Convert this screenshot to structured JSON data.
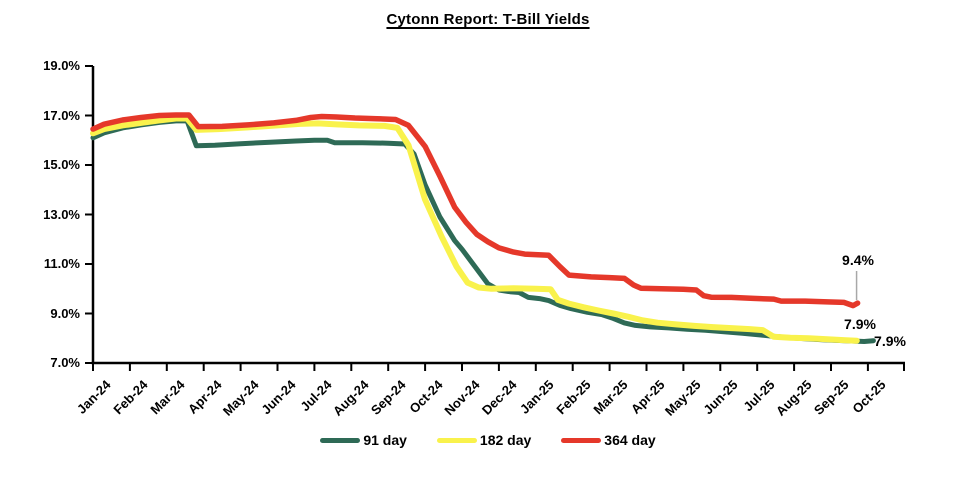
{
  "title": "Cytonn Report: T-Bill Yields",
  "y_axis": {
    "ticks": [
      "19.0%",
      "17.0%",
      "15.0%",
      "13.0%",
      "11.0%",
      "9.0%",
      "7.0%"
    ],
    "min": 7.0,
    "max": 19.0,
    "axis_color": "#000000"
  },
  "legend": {
    "items": [
      {
        "label": "91 day",
        "color": "#2E6A56"
      },
      {
        "label": "182 day",
        "color": "#F9F24C"
      },
      {
        "label": "364 day",
        "color": "#E5382A"
      }
    ]
  },
  "leader_line_color": "#A8A8A8",
  "chart_data": {
    "type": "line",
    "title": "Cytonn Report: T-Bill Yields",
    "xlabel": "",
    "ylabel": "",
    "ylim": [
      7.0,
      19.0
    ],
    "y_tick_step": 2.0,
    "grid": false,
    "legend_position": "bottom",
    "categories": [
      "Jan-24",
      "Feb-24",
      "Mar-24",
      "Apr-24",
      "May-24",
      "Jun-24",
      "Jul-24",
      "Aug-24",
      "Sep-24",
      "Oct-24",
      "Nov-24",
      "Dec-24",
      "Jan-25",
      "Feb-25",
      "Mar-25",
      "Apr-25",
      "May-25",
      "Jun-25",
      "Jul-25",
      "Aug-25",
      "Sep-25",
      "Oct-25"
    ],
    "series": [
      {
        "name": "91 day",
        "color": "#2E6A56",
        "stroke_width": 5,
        "end_value_label": "7.9%",
        "values": [
          16.1,
          16.6,
          16.8,
          15.8,
          15.9,
          16.0,
          16.0,
          15.9,
          15.9,
          14.2,
          11.6,
          10.0,
          9.6,
          9.0,
          8.9,
          8.5,
          8.4,
          8.3,
          8.2,
          8.1,
          7.9,
          7.9
        ],
        "path": [
          [
            0,
            16.1
          ],
          [
            0.3,
            16.3
          ],
          [
            0.8,
            16.5
          ],
          [
            1.3,
            16.62
          ],
          [
            1.8,
            16.72
          ],
          [
            2.25,
            16.78
          ],
          [
            2.55,
            16.78
          ],
          [
            2.8,
            15.78
          ],
          [
            3.3,
            15.8
          ],
          [
            4.0,
            15.86
          ],
          [
            4.8,
            15.92
          ],
          [
            5.5,
            15.97
          ],
          [
            6.0,
            16.0
          ],
          [
            6.35,
            16.0
          ],
          [
            6.55,
            15.9
          ],
          [
            7.3,
            15.9
          ],
          [
            8.0,
            15.88
          ],
          [
            8.45,
            15.85
          ],
          [
            8.7,
            15.45
          ],
          [
            9.0,
            14.2
          ],
          [
            9.4,
            12.9
          ],
          [
            9.8,
            11.95
          ],
          [
            10.0,
            11.6
          ],
          [
            10.35,
            10.9
          ],
          [
            10.7,
            10.2
          ],
          [
            11.0,
            9.95
          ],
          [
            11.3,
            9.88
          ],
          [
            11.55,
            9.85
          ],
          [
            11.8,
            9.65
          ],
          [
            12.1,
            9.6
          ],
          [
            12.35,
            9.52
          ],
          [
            12.65,
            9.33
          ],
          [
            12.95,
            9.2
          ],
          [
            13.4,
            9.05
          ],
          [
            13.8,
            8.95
          ],
          [
            14.1,
            8.8
          ],
          [
            14.4,
            8.62
          ],
          [
            14.7,
            8.52
          ],
          [
            15.1,
            8.46
          ],
          [
            15.6,
            8.42
          ],
          [
            16.1,
            8.36
          ],
          [
            16.6,
            8.32
          ],
          [
            17.1,
            8.26
          ],
          [
            17.6,
            8.2
          ],
          [
            18.1,
            8.13
          ],
          [
            18.5,
            8.07
          ],
          [
            18.9,
            8.02
          ],
          [
            19.4,
            7.97
          ],
          [
            19.9,
            7.93
          ],
          [
            20.4,
            7.9
          ],
          [
            20.9,
            7.87
          ],
          [
            21.15,
            7.9
          ]
        ]
      },
      {
        "name": "182 day",
        "color": "#F9F24C",
        "stroke_width": 6,
        "end_value_label": "7.9%",
        "values": [
          16.3,
          16.7,
          16.9,
          16.4,
          16.5,
          16.6,
          16.7,
          16.6,
          16.6,
          13.6,
          10.8,
          10.0,
          10.0,
          9.3,
          9.1,
          8.7,
          8.6,
          8.4,
          8.4,
          8.1,
          8.0,
          7.9
        ],
        "path": [
          [
            0,
            16.28
          ],
          [
            0.3,
            16.45
          ],
          [
            0.8,
            16.6
          ],
          [
            1.3,
            16.7
          ],
          [
            1.8,
            16.8
          ],
          [
            2.25,
            16.88
          ],
          [
            2.55,
            16.88
          ],
          [
            2.8,
            16.42
          ],
          [
            3.4,
            16.45
          ],
          [
            4.2,
            16.52
          ],
          [
            5.0,
            16.6
          ],
          [
            5.6,
            16.66
          ],
          [
            6.1,
            16.68
          ],
          [
            6.6,
            16.64
          ],
          [
            7.2,
            16.6
          ],
          [
            7.9,
            16.58
          ],
          [
            8.25,
            16.5
          ],
          [
            8.55,
            15.8
          ],
          [
            9.0,
            13.6
          ],
          [
            9.45,
            12.1
          ],
          [
            9.85,
            10.9
          ],
          [
            10.15,
            10.25
          ],
          [
            10.45,
            10.05
          ],
          [
            10.8,
            10.0
          ],
          [
            11.4,
            10.02
          ],
          [
            12.0,
            10.0
          ],
          [
            12.4,
            9.98
          ],
          [
            12.6,
            9.55
          ],
          [
            12.9,
            9.4
          ],
          [
            13.3,
            9.25
          ],
          [
            13.7,
            9.12
          ],
          [
            14.1,
            9.0
          ],
          [
            14.5,
            8.87
          ],
          [
            14.9,
            8.72
          ],
          [
            15.3,
            8.63
          ],
          [
            15.8,
            8.56
          ],
          [
            16.3,
            8.5
          ],
          [
            16.8,
            8.45
          ],
          [
            17.3,
            8.41
          ],
          [
            17.8,
            8.37
          ],
          [
            18.15,
            8.33
          ],
          [
            18.45,
            8.06
          ],
          [
            18.9,
            8.02
          ],
          [
            19.4,
            8.0
          ],
          [
            19.9,
            7.96
          ],
          [
            20.4,
            7.92
          ],
          [
            20.7,
            7.9
          ]
        ]
      },
      {
        "name": "364 day",
        "color": "#E5382A",
        "stroke_width": 5.5,
        "end_value_label": "9.4%",
        "values": [
          16.5,
          16.9,
          17.0,
          16.6,
          16.7,
          16.8,
          17.0,
          16.9,
          16.9,
          15.8,
          13.0,
          11.6,
          11.4,
          10.5,
          10.5,
          10.4,
          10.0,
          9.7,
          9.6,
          9.5,
          9.5,
          9.4
        ],
        "path": [
          [
            0,
            16.45
          ],
          [
            0.3,
            16.65
          ],
          [
            0.8,
            16.82
          ],
          [
            1.3,
            16.92
          ],
          [
            1.8,
            17.0
          ],
          [
            2.25,
            17.02
          ],
          [
            2.6,
            17.02
          ],
          [
            2.85,
            16.55
          ],
          [
            3.5,
            16.56
          ],
          [
            4.2,
            16.62
          ],
          [
            4.9,
            16.7
          ],
          [
            5.5,
            16.8
          ],
          [
            5.9,
            16.92
          ],
          [
            6.2,
            16.96
          ],
          [
            6.6,
            16.94
          ],
          [
            7.1,
            16.9
          ],
          [
            7.7,
            16.87
          ],
          [
            8.2,
            16.84
          ],
          [
            8.55,
            16.6
          ],
          [
            9.0,
            15.75
          ],
          [
            9.4,
            14.55
          ],
          [
            9.8,
            13.3
          ],
          [
            10.1,
            12.7
          ],
          [
            10.4,
            12.2
          ],
          [
            10.7,
            11.9
          ],
          [
            11.0,
            11.65
          ],
          [
            11.4,
            11.48
          ],
          [
            11.7,
            11.4
          ],
          [
            12.35,
            11.35
          ],
          [
            12.65,
            10.9
          ],
          [
            12.9,
            10.55
          ],
          [
            13.5,
            10.48
          ],
          [
            14.0,
            10.45
          ],
          [
            14.4,
            10.42
          ],
          [
            14.65,
            10.15
          ],
          [
            14.85,
            10.02
          ],
          [
            15.4,
            10.0
          ],
          [
            16.0,
            9.98
          ],
          [
            16.35,
            9.95
          ],
          [
            16.55,
            9.72
          ],
          [
            16.75,
            9.66
          ],
          [
            17.3,
            9.65
          ],
          [
            17.9,
            9.61
          ],
          [
            18.45,
            9.58
          ],
          [
            18.65,
            9.5
          ],
          [
            19.3,
            9.5
          ],
          [
            19.9,
            9.47
          ],
          [
            20.35,
            9.45
          ],
          [
            20.6,
            9.32
          ],
          [
            20.72,
            9.42
          ]
        ]
      }
    ],
    "end_labels": [
      {
        "series": "364 day",
        "text": "9.4%"
      },
      {
        "series": "182 day",
        "text": "7.9%"
      },
      {
        "series": "91 day",
        "text": "7.9%"
      }
    ]
  }
}
